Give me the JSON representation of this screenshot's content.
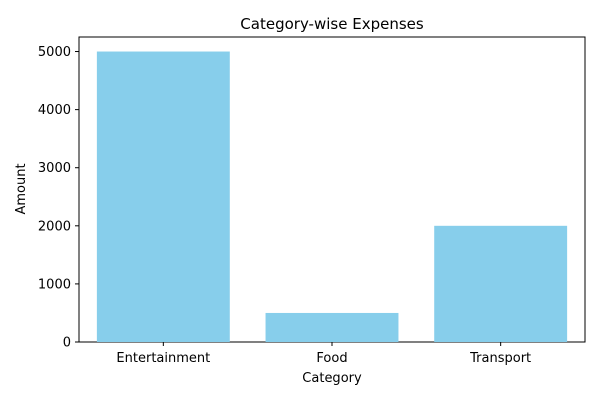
{
  "chart_data": {
    "type": "bar",
    "title": "Category-wise Expenses",
    "xlabel": "Category",
    "ylabel": "Amount",
    "categories": [
      "Entertainment",
      "Food",
      "Transport"
    ],
    "values": [
      5000,
      500,
      2000
    ],
    "ylim": [
      0,
      5250
    ],
    "yticks": [
      0,
      1000,
      2000,
      3000,
      4000,
      5000
    ],
    "bar_color": "#87ceeb",
    "grid": false,
    "legend": "none"
  }
}
